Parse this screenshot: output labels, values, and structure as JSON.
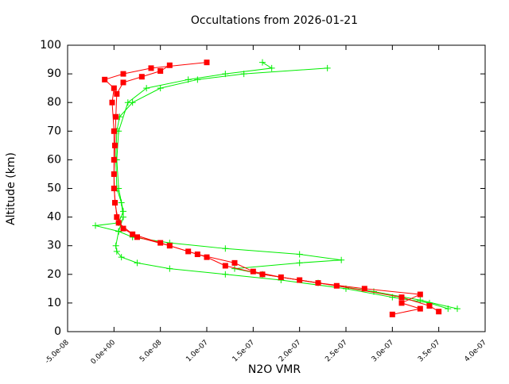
{
  "chart_data": {
    "type": "line",
    "title": "Occultations from 2026-01-21",
    "x_label": "N2O VMR",
    "y_label": "Altitude (km)",
    "xlim": [
      -5e-08,
      4e-07
    ],
    "xticks": [
      {
        "value": -5e-08,
        "label": "-5.0e-08"
      },
      {
        "value": 0,
        "label": "0.0e+00"
      },
      {
        "value": 5e-08,
        "label": "5.0e-08"
      },
      {
        "value": 1e-07,
        "label": "1.0e-07"
      },
      {
        "value": 1.5e-07,
        "label": "1.5e-07"
      },
      {
        "value": 2e-07,
        "label": "2.0e-07"
      },
      {
        "value": 2.5e-07,
        "label": "2.5e-07"
      },
      {
        "value": 3e-07,
        "label": "3.0e-07"
      },
      {
        "value": 3.5e-07,
        "label": "3.5e-07"
      },
      {
        "value": 4e-07,
        "label": "4.0e-07"
      }
    ],
    "ylim": [
      0,
      100
    ],
    "yticks": [
      0,
      10,
      20,
      30,
      40,
      50,
      60,
      70,
      80,
      90,
      100
    ],
    "series": [
      {
        "color": "#00ee00",
        "marker": "plus",
        "x": [
          3.6e-07,
          3.4e-07,
          3e-07,
          2.5e-07,
          1.8e-07,
          1.2e-07,
          6e-08,
          2.5e-08,
          8e-09,
          3e-09,
          2e-09,
          5e-09,
          1e-08,
          8e-09,
          3e-09,
          2e-09,
          3e-09,
          6e-09,
          2e-08,
          5e-08,
          9e-08,
          1.4e-07,
          2.3e-07
        ],
        "values": [
          8,
          10,
          12,
          15,
          18,
          20,
          22,
          24,
          26,
          28,
          30,
          35,
          40,
          45,
          50,
          60,
          70,
          75,
          80,
          85,
          88,
          90,
          92
        ]
      },
      {
        "color": "#00ee00",
        "marker": "plus",
        "x": [
          3.7e-07,
          3.3e-07,
          2.8e-07,
          2.2e-07,
          1.6e-07,
          1.3e-07,
          2e-07,
          2.45e-07,
          2e-07,
          1.2e-07,
          6e-08,
          2e-08,
          5e-09,
          -2e-08,
          5e-09,
          1e-08,
          5e-09,
          3e-09,
          5e-09,
          1.5e-08,
          3.5e-08,
          8e-08,
          1.2e-07,
          1.7e-07,
          1.6e-07
        ],
        "values": [
          8,
          11,
          14,
          17,
          20,
          22,
          24,
          25,
          27,
          29,
          31,
          33,
          35,
          37,
          38,
          42,
          50,
          60,
          70,
          80,
          85,
          88,
          90,
          92,
          94
        ]
      },
      {
        "color": "#ff0000",
        "marker": "square",
        "x": [
          3e-07,
          3.3e-07,
          3.1e-07,
          3.3e-07,
          2.7e-07,
          2.2e-07,
          1.8e-07,
          1.5e-07,
          1.3e-07,
          9e-08,
          6e-08,
          2.5e-08,
          1e-08,
          3e-09,
          0,
          0,
          0,
          -2e-09,
          0,
          -1e-08,
          1e-08,
          4e-08,
          1e-07
        ],
        "values": [
          6,
          8,
          10,
          13,
          15,
          17,
          19,
          21,
          24,
          27,
          30,
          33,
          36,
          40,
          50,
          60,
          70,
          80,
          85,
          88,
          90,
          92,
          94
        ]
      },
      {
        "color": "#ff0000",
        "marker": "square",
        "x": [
          3.5e-07,
          3.4e-07,
          3.1e-07,
          2.4e-07,
          2e-07,
          1.6e-07,
          1.2e-07,
          1e-07,
          8e-08,
          5e-08,
          2e-08,
          5e-09,
          1e-09,
          0,
          1e-09,
          2e-09,
          3e-09,
          1e-08,
          3e-08,
          5e-08,
          6e-08
        ],
        "values": [
          7,
          9,
          12,
          16,
          18,
          20,
          23,
          26,
          28,
          31,
          34,
          38,
          45,
          55,
          65,
          75,
          83,
          87,
          89,
          91,
          93
        ]
      }
    ]
  }
}
